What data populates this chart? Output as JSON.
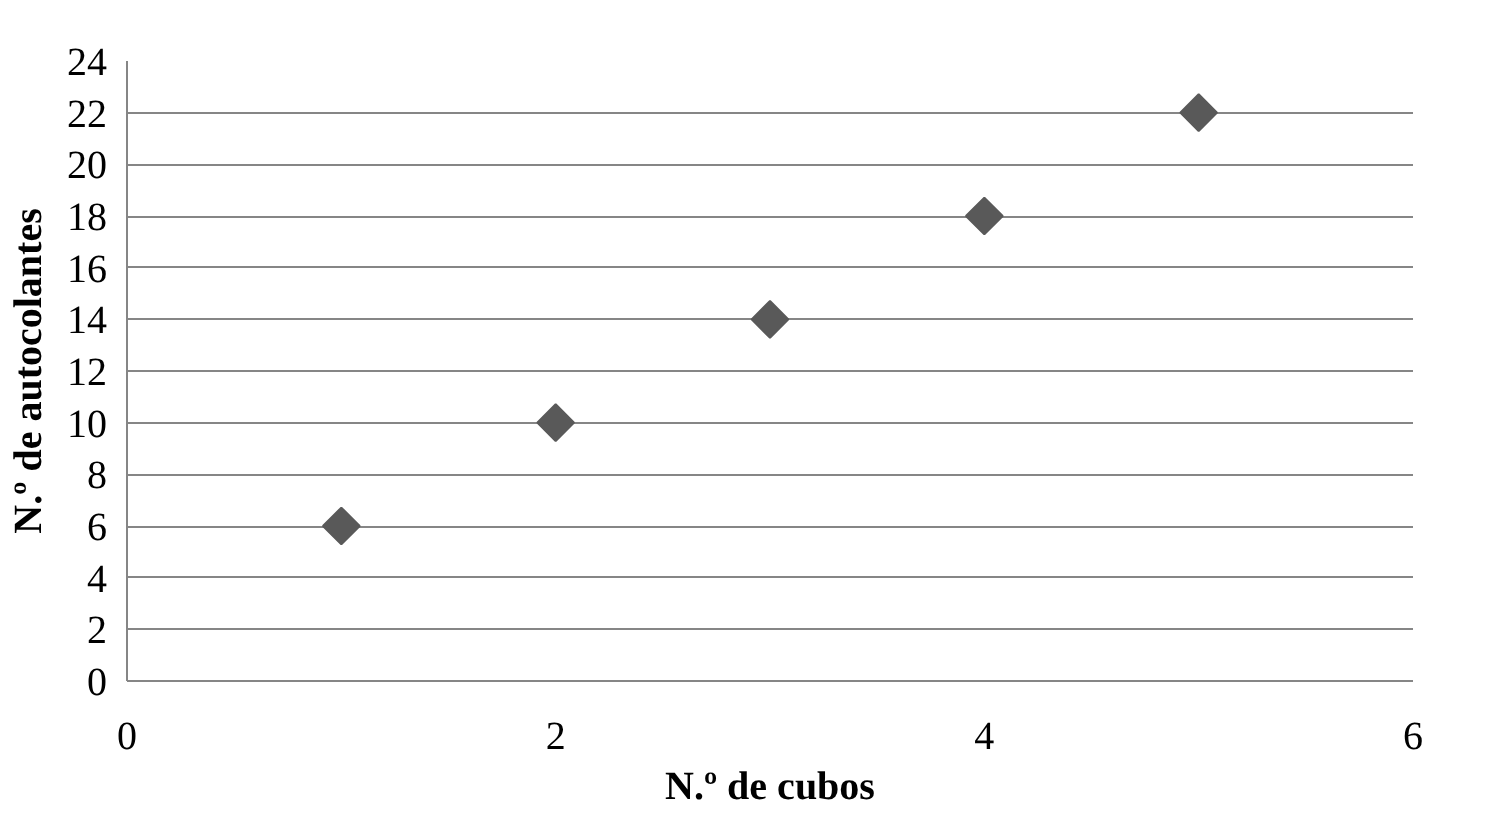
{
  "chart_data": {
    "type": "scatter",
    "xlabel": "N.º de cubos",
    "ylabel": "N.º de autocolantes",
    "x": [
      1,
      2,
      3,
      4,
      5
    ],
    "series": [
      {
        "color": "#595959",
        "values": [
          6,
          10,
          14,
          18,
          22
        ]
      }
    ],
    "xlim": [
      0,
      6
    ],
    "xticks": [
      0,
      2,
      4,
      6
    ],
    "ylim": [
      0,
      24
    ],
    "yticks": [
      0,
      2,
      4,
      6,
      8,
      10,
      12,
      14,
      16,
      18,
      20,
      22,
      24
    ],
    "grid": "y",
    "marker": "diamond"
  }
}
